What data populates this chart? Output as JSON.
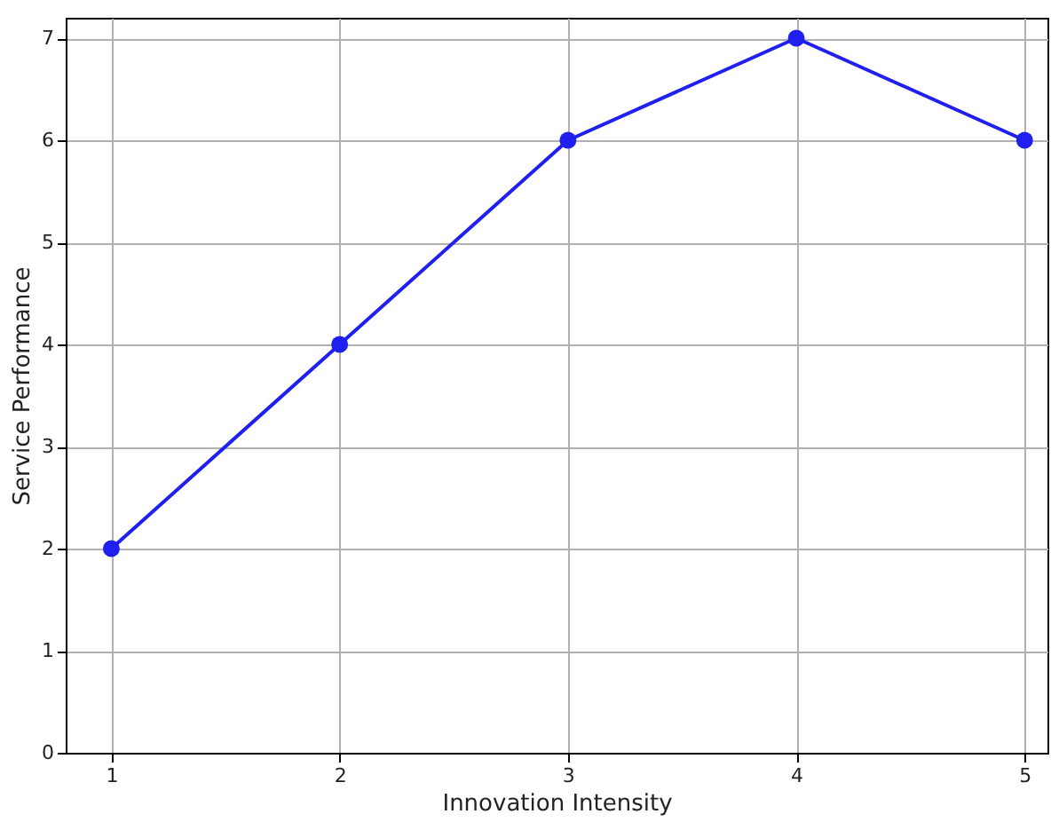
{
  "chart_data": {
    "type": "line",
    "xlabel": "Innovation Intensity",
    "ylabel": "Service Performance",
    "x": [
      1,
      2,
      3,
      4,
      5
    ],
    "series": [
      {
        "color": "#1f1fef",
        "values": [
          2,
          4,
          6,
          7,
          6
        ]
      }
    ],
    "xlim": [
      0.8,
      5.1
    ],
    "xticks": [
      1,
      2,
      3,
      4,
      5
    ],
    "ylim": [
      0,
      7.2
    ],
    "yticks": [
      0,
      1,
      2,
      3,
      4,
      5,
      6,
      7
    ],
    "grid": true,
    "marker": "circle",
    "line_style": "solid"
  }
}
